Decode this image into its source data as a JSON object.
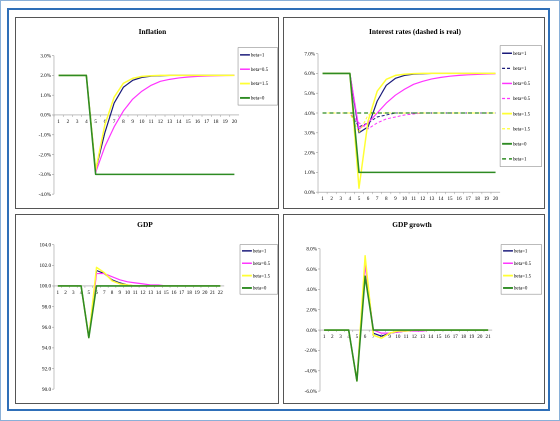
{
  "colors": {
    "blue": "#1a1a7a",
    "magenta": "#ff33ff",
    "yellow": "#ffff33",
    "green": "#2e8b23",
    "border": "#2f6fb8"
  },
  "chart_data": [
    {
      "type": "line",
      "title": "Inflation",
      "x": [
        1,
        2,
        3,
        4,
        5,
        6,
        7,
        8,
        9,
        10,
        11,
        12,
        13,
        14,
        15,
        16,
        17,
        18,
        19,
        20
      ],
      "xticks": [
        "1",
        "2",
        "3",
        "4",
        "5",
        "6",
        "7",
        "8",
        "9",
        "10",
        "11",
        "12",
        "13",
        "14",
        "15",
        "16",
        "17",
        "18",
        "19",
        "20"
      ],
      "ylim": [
        -4.0,
        3.0
      ],
      "ytick_values": [
        3.0,
        2.0,
        1.0,
        0.0,
        -1.0,
        -2.0,
        -3.0,
        -4.0
      ],
      "yticks": [
        "3.0%",
        "2.0%",
        "1.0%",
        "0.0%",
        "-1.0%",
        "-2.0%",
        "-3.0%",
        "-4.0%"
      ],
      "series": [
        {
          "name": "beta=1",
          "color": "#1a1a7a",
          "width": 1.2,
          "dash": "",
          "values": [
            2.0,
            2.0,
            2.0,
            2.0,
            -2.8,
            -0.9,
            0.6,
            1.4,
            1.75,
            1.9,
            1.96,
            1.98,
            2.0,
            2.0,
            2.0,
            2.0,
            2.0,
            2.0,
            2.0,
            2.0
          ]
        },
        {
          "name": "beta=0.5",
          "color": "#ff33ff",
          "width": 1.2,
          "dash": "",
          "values": [
            2.0,
            2.0,
            2.0,
            2.0,
            -2.9,
            -1.6,
            -0.6,
            0.2,
            0.8,
            1.2,
            1.5,
            1.7,
            1.8,
            1.87,
            1.92,
            1.95,
            1.97,
            1.98,
            1.99,
            2.0
          ]
        },
        {
          "name": "beta=1.5",
          "color": "#ffff33",
          "width": 1.5,
          "dash": "",
          "values": [
            2.0,
            2.0,
            2.0,
            2.0,
            -2.8,
            -0.5,
            0.9,
            1.6,
            1.85,
            1.95,
            1.98,
            2.0,
            2.0,
            2.0,
            2.0,
            2.0,
            2.0,
            2.0,
            2.0,
            2.0
          ]
        },
        {
          "name": "beta=0",
          "color": "#2e8b23",
          "width": 1.6,
          "dash": "",
          "values": [
            2.0,
            2.0,
            2.0,
            2.0,
            -3.0,
            -3.0,
            -3.0,
            -3.0,
            -3.0,
            -3.0,
            -3.0,
            -3.0,
            -3.0,
            -3.0,
            -3.0,
            -3.0,
            -3.0,
            -3.0,
            -3.0,
            -3.0
          ]
        }
      ]
    },
    {
      "type": "line",
      "title": "Interest rates (dashed is real)",
      "x": [
        1,
        2,
        3,
        4,
        5,
        6,
        7,
        8,
        9,
        10,
        11,
        12,
        13,
        14,
        15,
        16,
        17,
        18,
        19,
        20
      ],
      "xticks": [
        "1",
        "2",
        "3",
        "4",
        "5",
        "6",
        "7",
        "8",
        "9",
        "10",
        "11",
        "12",
        "13",
        "14",
        "15",
        "16",
        "17",
        "18",
        "19",
        "20"
      ],
      "ylim": [
        0.0,
        7.0
      ],
      "ytick_values": [
        7.0,
        6.0,
        5.0,
        4.0,
        3.0,
        2.0,
        1.0,
        0.0
      ],
      "yticks": [
        "7.0%",
        "6.0%",
        "5.0%",
        "4.0%",
        "3.0%",
        "2.0%",
        "1.0%",
        "0.0%"
      ],
      "series": [
        {
          "name": "beta=1",
          "color": "#1a1a7a",
          "width": 1.2,
          "dash": "",
          "values": [
            6.0,
            6.0,
            6.0,
            6.0,
            3.0,
            3.3,
            4.6,
            5.4,
            5.75,
            5.9,
            5.96,
            5.98,
            6.0,
            6.0,
            6.0,
            6.0,
            6.0,
            6.0,
            6.0,
            6.0
          ]
        },
        {
          "name": "beta=1",
          "color": "#1a1a7a",
          "width": 1.0,
          "dash": "3,2",
          "values": [
            4.0,
            4.0,
            4.0,
            4.0,
            3.3,
            3.5,
            3.8,
            3.9,
            4.0,
            4.0,
            4.0,
            4.0,
            4.0,
            4.0,
            4.0,
            4.0,
            4.0,
            4.0,
            4.0,
            4.0
          ]
        },
        {
          "name": "beta=0.5",
          "color": "#ff33ff",
          "width": 1.2,
          "dash": "",
          "values": [
            6.0,
            6.0,
            6.0,
            6.0,
            3.2,
            3.5,
            4.0,
            4.5,
            4.9,
            5.2,
            5.45,
            5.6,
            5.72,
            5.8,
            5.86,
            5.9,
            5.93,
            5.95,
            5.97,
            5.98
          ]
        },
        {
          "name": "beta=0.5",
          "color": "#ff33ff",
          "width": 1.0,
          "dash": "3,2",
          "values": [
            4.0,
            4.0,
            4.0,
            4.0,
            3.5,
            3.2,
            3.5,
            3.7,
            3.8,
            3.9,
            3.95,
            4.0,
            4.0,
            4.0,
            4.0,
            4.0,
            4.0,
            4.0,
            4.0,
            4.0
          ]
        },
        {
          "name": "beta=1.5",
          "color": "#ffff33",
          "width": 1.5,
          "dash": "",
          "values": [
            6.0,
            6.0,
            6.0,
            6.0,
            0.2,
            3.6,
            5.1,
            5.7,
            5.9,
            5.96,
            5.99,
            6.0,
            6.0,
            6.0,
            6.0,
            6.0,
            6.0,
            6.0,
            6.0,
            6.0
          ]
        },
        {
          "name": "beta=1.5",
          "color": "#ffff33",
          "width": 1.0,
          "dash": "3,2",
          "values": [
            4.0,
            4.0,
            4.0,
            4.0,
            3.0,
            3.9,
            4.0,
            4.0,
            4.0,
            4.0,
            4.0,
            4.0,
            4.0,
            4.0,
            4.0,
            4.0,
            4.0,
            4.0,
            4.0,
            4.0
          ]
        },
        {
          "name": "beta=0",
          "color": "#2e8b23",
          "width": 1.6,
          "dash": "",
          "values": [
            6.0,
            6.0,
            6.0,
            6.0,
            1.0,
            1.0,
            1.0,
            1.0,
            1.0,
            1.0,
            1.0,
            1.0,
            1.0,
            1.0,
            1.0,
            1.0,
            1.0,
            1.0,
            1.0,
            1.0
          ]
        },
        {
          "name": "beta=1",
          "color": "#2e8b23",
          "width": 1.2,
          "dash": "4,3",
          "values": [
            4.0,
            4.0,
            4.0,
            4.0,
            4.0,
            4.0,
            4.0,
            4.0,
            4.0,
            4.0,
            4.0,
            4.0,
            4.0,
            4.0,
            4.0,
            4.0,
            4.0,
            4.0,
            4.0,
            4.0
          ]
        }
      ]
    },
    {
      "type": "line",
      "title": "GDP",
      "x": [
        1,
        2,
        3,
        4,
        5,
        6,
        7,
        8,
        9,
        10,
        11,
        12,
        13,
        14,
        15,
        16,
        17,
        18,
        19,
        20,
        21,
        22
      ],
      "xticks": [
        "1",
        "2",
        "3",
        "4",
        "5",
        "6",
        "7",
        "8",
        "9",
        "10",
        "11",
        "12",
        "13",
        "14",
        "15",
        "16",
        "17",
        "18",
        "19",
        "20",
        "21",
        "22"
      ],
      "ylim": [
        90.0,
        104.0
      ],
      "ytick_values": [
        104.0,
        102.0,
        100.0,
        98.0,
        96.0,
        94.0,
        92.0,
        90.0
      ],
      "yticks": [
        "104.0",
        "102.0",
        "100.0",
        "98.0",
        "96.0",
        "94.0",
        "92.0",
        "90.0"
      ],
      "series": [
        {
          "name": "beta=1",
          "color": "#1a1a7a",
          "width": 1.2,
          "dash": "",
          "values": [
            100,
            100,
            100,
            100,
            95,
            101.5,
            101.2,
            100.6,
            100.3,
            100.1,
            100,
            100,
            100,
            100,
            100,
            100,
            100,
            100,
            100,
            100,
            100,
            100
          ]
        },
        {
          "name": "beta=0.5",
          "color": "#ff33ff",
          "width": 1.2,
          "dash": "",
          "values": [
            100,
            100,
            100,
            100,
            95,
            101.2,
            101.2,
            100.9,
            100.6,
            100.4,
            100.3,
            100.2,
            100.1,
            100.1,
            100,
            100,
            100,
            100,
            100,
            100,
            100,
            100
          ]
        },
        {
          "name": "beta=1.5",
          "color": "#ffff33",
          "width": 1.5,
          "dash": "",
          "values": [
            100,
            100,
            100,
            100,
            95,
            101.8,
            101.3,
            100.5,
            100.2,
            100.1,
            100,
            100,
            100,
            100,
            100,
            100,
            100,
            100,
            100,
            100,
            100,
            100
          ]
        },
        {
          "name": "beta=0",
          "color": "#2e8b23",
          "width": 1.6,
          "dash": "",
          "values": [
            100,
            100,
            100,
            100,
            95,
            100,
            100,
            100,
            100,
            100,
            100,
            100,
            100,
            100,
            100,
            100,
            100,
            100,
            100,
            100,
            100,
            100
          ]
        }
      ]
    },
    {
      "type": "line",
      "title": "GDP growth",
      "x": [
        1,
        2,
        3,
        4,
        5,
        6,
        7,
        8,
        9,
        10,
        11,
        12,
        13,
        14,
        15,
        16,
        17,
        18,
        19,
        20,
        21
      ],
      "xticks": [
        "1",
        "2",
        "3",
        "4",
        "5",
        "6",
        "7",
        "8",
        "9",
        "10",
        "11",
        "12",
        "13",
        "14",
        "15",
        "16",
        "17",
        "18",
        "19",
        "20",
        "21"
      ],
      "ylim": [
        -6.0,
        8.0
      ],
      "ytick_values": [
        8.0,
        6.0,
        4.0,
        2.0,
        0.0,
        -2.0,
        -4.0,
        -6.0
      ],
      "yticks": [
        "8.0%",
        "6.0%",
        "4.0%",
        "2.0%",
        "0.0%",
        "-2.0%",
        "-4.0%",
        "-6.0%"
      ],
      "series": [
        {
          "name": "beta=1",
          "color": "#1a1a7a",
          "width": 1.2,
          "dash": "",
          "values": [
            0,
            0,
            0,
            0,
            -5.0,
            6.8,
            -0.3,
            -0.6,
            -0.3,
            -0.2,
            -0.1,
            0,
            0,
            0,
            0,
            0,
            0,
            0,
            0,
            0,
            0
          ]
        },
        {
          "name": "beta=0.5",
          "color": "#ff33ff",
          "width": 1.2,
          "dash": "",
          "values": [
            0,
            0,
            0,
            0,
            -5.0,
            6.4,
            0,
            -0.3,
            -0.3,
            -0.2,
            -0.1,
            -0.1,
            -0.1,
            0,
            0,
            0,
            0,
            0,
            0,
            0,
            0
          ]
        },
        {
          "name": "beta=1.5",
          "color": "#ffff33",
          "width": 1.5,
          "dash": "",
          "values": [
            0,
            0,
            0,
            0,
            -5.0,
            7.3,
            -0.5,
            -0.8,
            -0.3,
            -0.1,
            -0.1,
            0,
            0,
            0,
            0,
            0,
            0,
            0,
            0,
            0,
            0
          ]
        },
        {
          "name": "beta=0",
          "color": "#2e8b23",
          "width": 1.6,
          "dash": "",
          "values": [
            0,
            0,
            0,
            0,
            -5.0,
            5.3,
            0,
            0,
            0,
            0,
            0,
            0,
            0,
            0,
            0,
            0,
            0,
            0,
            0,
            0,
            0
          ]
        }
      ]
    }
  ]
}
